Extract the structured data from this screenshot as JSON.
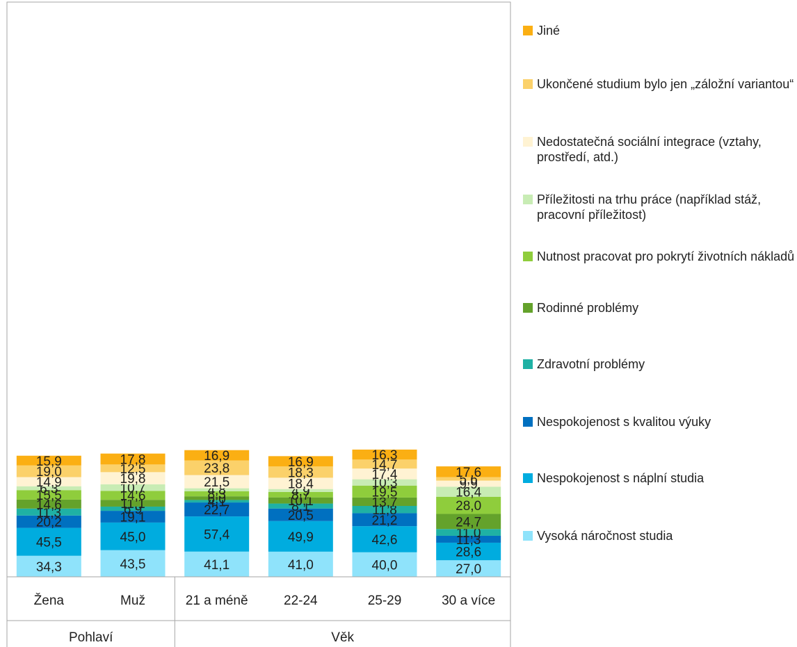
{
  "chart_data": {
    "type": "bar",
    "stacked": true,
    "categories": [
      "Žena",
      "Muž",
      "21 a méně",
      "22-24",
      "25-29",
      "30 a více"
    ],
    "groups": [
      {
        "label": "Pohlaví",
        "categories": [
          "Žena",
          "Muž"
        ]
      },
      {
        "label": "Věk",
        "categories": [
          "21 a méně",
          "22-24",
          "25-29",
          "30 a více"
        ]
      }
    ],
    "series": [
      {
        "name": "Vysoká náročnost studia",
        "color": "#8fe3fb",
        "values": [
          34.3,
          43.5,
          41.1,
          41.0,
          40.0,
          27.0
        ]
      },
      {
        "name": "Nespokojenost s náplní studia",
        "color": "#00acdf",
        "values": [
          45.5,
          45.0,
          57.4,
          49.9,
          42.6,
          28.6
        ]
      },
      {
        "name": "Nespokojenost s kvalitou výuky",
        "color": "#0070c0",
        "values": [
          20.2,
          19.1,
          22.7,
          20.5,
          21.2,
          11.3
        ]
      },
      {
        "name": "Zdravotní problémy",
        "color": "#1fb1a4",
        "values": [
          11.3,
          6.9,
          4.1,
          8.1,
          11.8,
          11.0
        ]
      },
      {
        "name": "Rodinné problémy",
        "color": "#64a22b",
        "values": [
          14.6,
          11.1,
          6.0,
          10.1,
          13.7,
          24.7
        ]
      },
      {
        "name": "Nutnost pracovat pro pokrytí životních nákladů",
        "color": "#8fcd3c",
        "values": [
          15.5,
          14.6,
          8.3,
          8.7,
          19.5,
          28.0
        ]
      },
      {
        "name": "Příležitosti na trhu práce (například stáž, pracovní příležitost)",
        "color": "#c8ecb4",
        "values": [
          6.3,
          10.7,
          4.8,
          4.9,
          10.3,
          16.4
        ]
      },
      {
        "name": "Nedostatečná sociální integrace (vztahy, prostředí, atd.)",
        "color": "#fff3d3",
        "values": [
          14.9,
          19.8,
          21.5,
          18.4,
          17.4,
          9.9
        ]
      },
      {
        "name": "Ukončené studium bylo jen „záložní variantou“",
        "color": "#fbd16a",
        "values": [
          19.0,
          12.5,
          23.8,
          18.3,
          14.7,
          5.6
        ]
      },
      {
        "name": "Jiné",
        "color": "#fbaf13",
        "values": [
          15.9,
          17.8,
          16.9,
          16.9,
          16.3,
          17.6
        ]
      }
    ],
    "grid": false,
    "legend_position": "right",
    "title": "",
    "xlabel": "",
    "ylabel": ""
  }
}
